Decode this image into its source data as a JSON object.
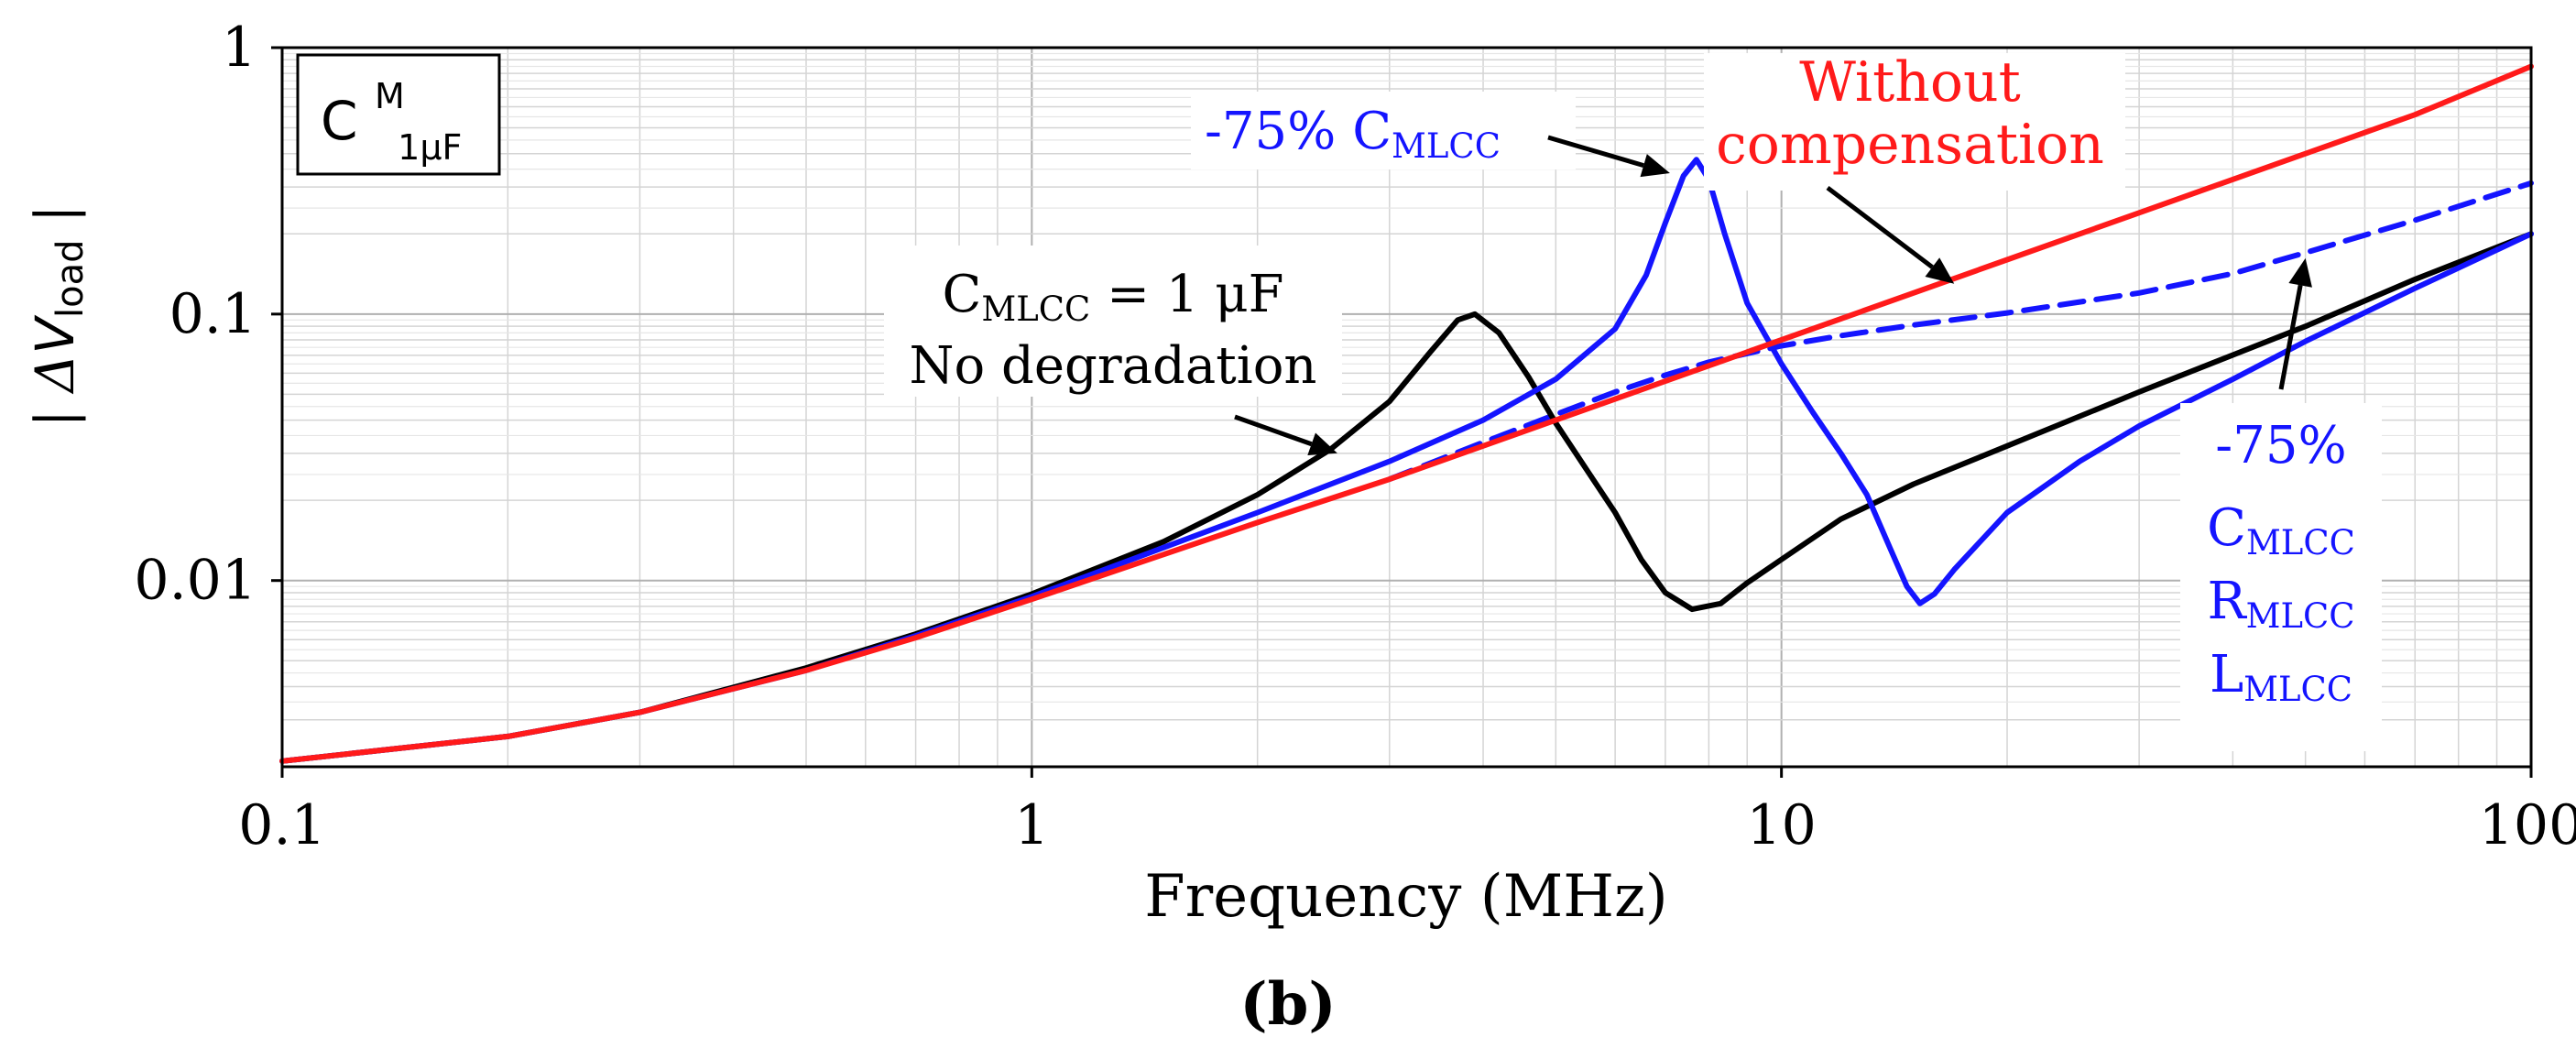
{
  "chart_data": {
    "type": "line",
    "title": "",
    "xlabel": "Frequency (MHz)",
    "ylabel": {
      "prefix": "| ",
      "delta": "Δ",
      "var": "V",
      "sub": "load",
      "suffix": " |"
    },
    "xscale": "log",
    "yscale": "log",
    "xlim": [
      0.1,
      100
    ],
    "ylim": [
      0.002,
      1
    ],
    "grid": true,
    "xticks": [
      {
        "value": 0.1,
        "label": "0.1"
      },
      {
        "value": 1,
        "label": "1"
      },
      {
        "value": 10,
        "label": "10"
      },
      {
        "value": 100,
        "label": "100"
      }
    ],
    "yticks": [
      {
        "value": 0.01,
        "label": "0.01"
      },
      {
        "value": 0.1,
        "label": "0.1"
      },
      {
        "value": 1,
        "label": "1"
      }
    ],
    "legend_box": {
      "base": "C",
      "sup": "M",
      "sub": "1μF",
      "placement": "top-left"
    },
    "series": [
      {
        "name": "Without compensation",
        "color": "#ff1a1a",
        "style": "solid",
        "points": [
          [
            0.1,
            0.0021
          ],
          [
            0.2,
            0.0026
          ],
          [
            0.3,
            0.0032
          ],
          [
            0.5,
            0.0046
          ],
          [
            0.7,
            0.0061
          ],
          [
            1,
            0.0085
          ],
          [
            2,
            0.0165
          ],
          [
            3,
            0.024
          ],
          [
            4,
            0.032
          ],
          [
            5,
            0.04
          ],
          [
            7,
            0.056
          ],
          [
            10,
            0.08
          ],
          [
            20,
            0.16
          ],
          [
            30,
            0.24
          ],
          [
            50,
            0.4
          ],
          [
            70,
            0.56
          ],
          [
            100,
            0.85
          ]
        ]
      },
      {
        "name": "CMLCC = 1 μF, No degradation",
        "color": "#000000",
        "style": "solid",
        "points": [
          [
            0.1,
            0.0021
          ],
          [
            0.2,
            0.0026
          ],
          [
            0.3,
            0.0032
          ],
          [
            0.5,
            0.0047
          ],
          [
            0.7,
            0.0063
          ],
          [
            1,
            0.0089
          ],
          [
            1.5,
            0.014
          ],
          [
            2,
            0.021
          ],
          [
            2.5,
            0.031
          ],
          [
            3,
            0.047
          ],
          [
            3.4,
            0.072
          ],
          [
            3.7,
            0.095
          ],
          [
            3.9,
            0.1
          ],
          [
            4.2,
            0.085
          ],
          [
            4.6,
            0.058
          ],
          [
            5,
            0.039
          ],
          [
            5.5,
            0.026
          ],
          [
            6,
            0.018
          ],
          [
            6.5,
            0.012
          ],
          [
            7,
            0.009
          ],
          [
            7.6,
            0.0078
          ],
          [
            8.3,
            0.0082
          ],
          [
            9,
            0.0098
          ],
          [
            10,
            0.012
          ],
          [
            12,
            0.017
          ],
          [
            15,
            0.023
          ],
          [
            20,
            0.032
          ],
          [
            30,
            0.051
          ],
          [
            50,
            0.09
          ],
          [
            70,
            0.135
          ],
          [
            100,
            0.2
          ]
        ]
      },
      {
        "name": "-75% CMLCC",
        "color": "#1414ff",
        "style": "solid",
        "points": [
          [
            0.1,
            0.0021
          ],
          [
            0.2,
            0.0026
          ],
          [
            0.3,
            0.0032
          ],
          [
            0.5,
            0.0046
          ],
          [
            0.7,
            0.0062
          ],
          [
            1,
            0.0087
          ],
          [
            2,
            0.018
          ],
          [
            3,
            0.028
          ],
          [
            4,
            0.04
          ],
          [
            5,
            0.057
          ],
          [
            6,
            0.088
          ],
          [
            6.6,
            0.14
          ],
          [
            7,
            0.22
          ],
          [
            7.4,
            0.33
          ],
          [
            7.7,
            0.38
          ],
          [
            8,
            0.32
          ],
          [
            8.4,
            0.2
          ],
          [
            9,
            0.11
          ],
          [
            10,
            0.065
          ],
          [
            11,
            0.043
          ],
          [
            12,
            0.03
          ],
          [
            13,
            0.021
          ],
          [
            14,
            0.013
          ],
          [
            14.7,
            0.0095
          ],
          [
            15.3,
            0.0082
          ],
          [
            16,
            0.0089
          ],
          [
            17,
            0.011
          ],
          [
            20,
            0.018
          ],
          [
            25,
            0.028
          ],
          [
            30,
            0.038
          ],
          [
            40,
            0.057
          ],
          [
            50,
            0.079
          ],
          [
            70,
            0.125
          ],
          [
            100,
            0.2
          ]
        ]
      },
      {
        "name": "-75% CMLCC RMLCC LMLCC",
        "color": "#1414ff",
        "style": "dashed",
        "points": [
          [
            3,
            0.024
          ],
          [
            4,
            0.033
          ],
          [
            5,
            0.042
          ],
          [
            6,
            0.051
          ],
          [
            7,
            0.059
          ],
          [
            8,
            0.066
          ],
          [
            10,
            0.076
          ],
          [
            12,
            0.083
          ],
          [
            15,
            0.091
          ],
          [
            20,
            0.101
          ],
          [
            30,
            0.12
          ],
          [
            40,
            0.142
          ],
          [
            50,
            0.17
          ],
          [
            70,
            0.225
          ],
          [
            100,
            0.31
          ]
        ]
      }
    ],
    "annotations": [
      {
        "id": "without-comp",
        "lines": [
          "Without",
          "compensation"
        ],
        "color": "#ff1a1a",
        "arrow_to": [
          17,
          0.13
        ]
      },
      {
        "id": "minus75-c",
        "prefix": "-75% C",
        "sub": "MLCC",
        "color": "#1414ff",
        "arrow_to": [
          7.1,
          0.36
        ]
      },
      {
        "id": "no-degradation",
        "line1": {
          "base": "C",
          "sub": "MLCC",
          "rest": " = 1 μF"
        },
        "line2": "No degradation",
        "color": "#000000",
        "arrow_to": [
          2.6,
          0.031
        ]
      },
      {
        "id": "minus75-crl",
        "line1": "-75%",
        "items": [
          {
            "base": "C",
            "sub": "MLCC"
          },
          {
            "base": "R",
            "sub": "MLCC"
          },
          {
            "base": "L",
            "sub": "MLCC"
          }
        ],
        "color": "#1414ff",
        "arrow_to": [
          50,
          0.17
        ]
      }
    ],
    "caption": "(b)"
  }
}
